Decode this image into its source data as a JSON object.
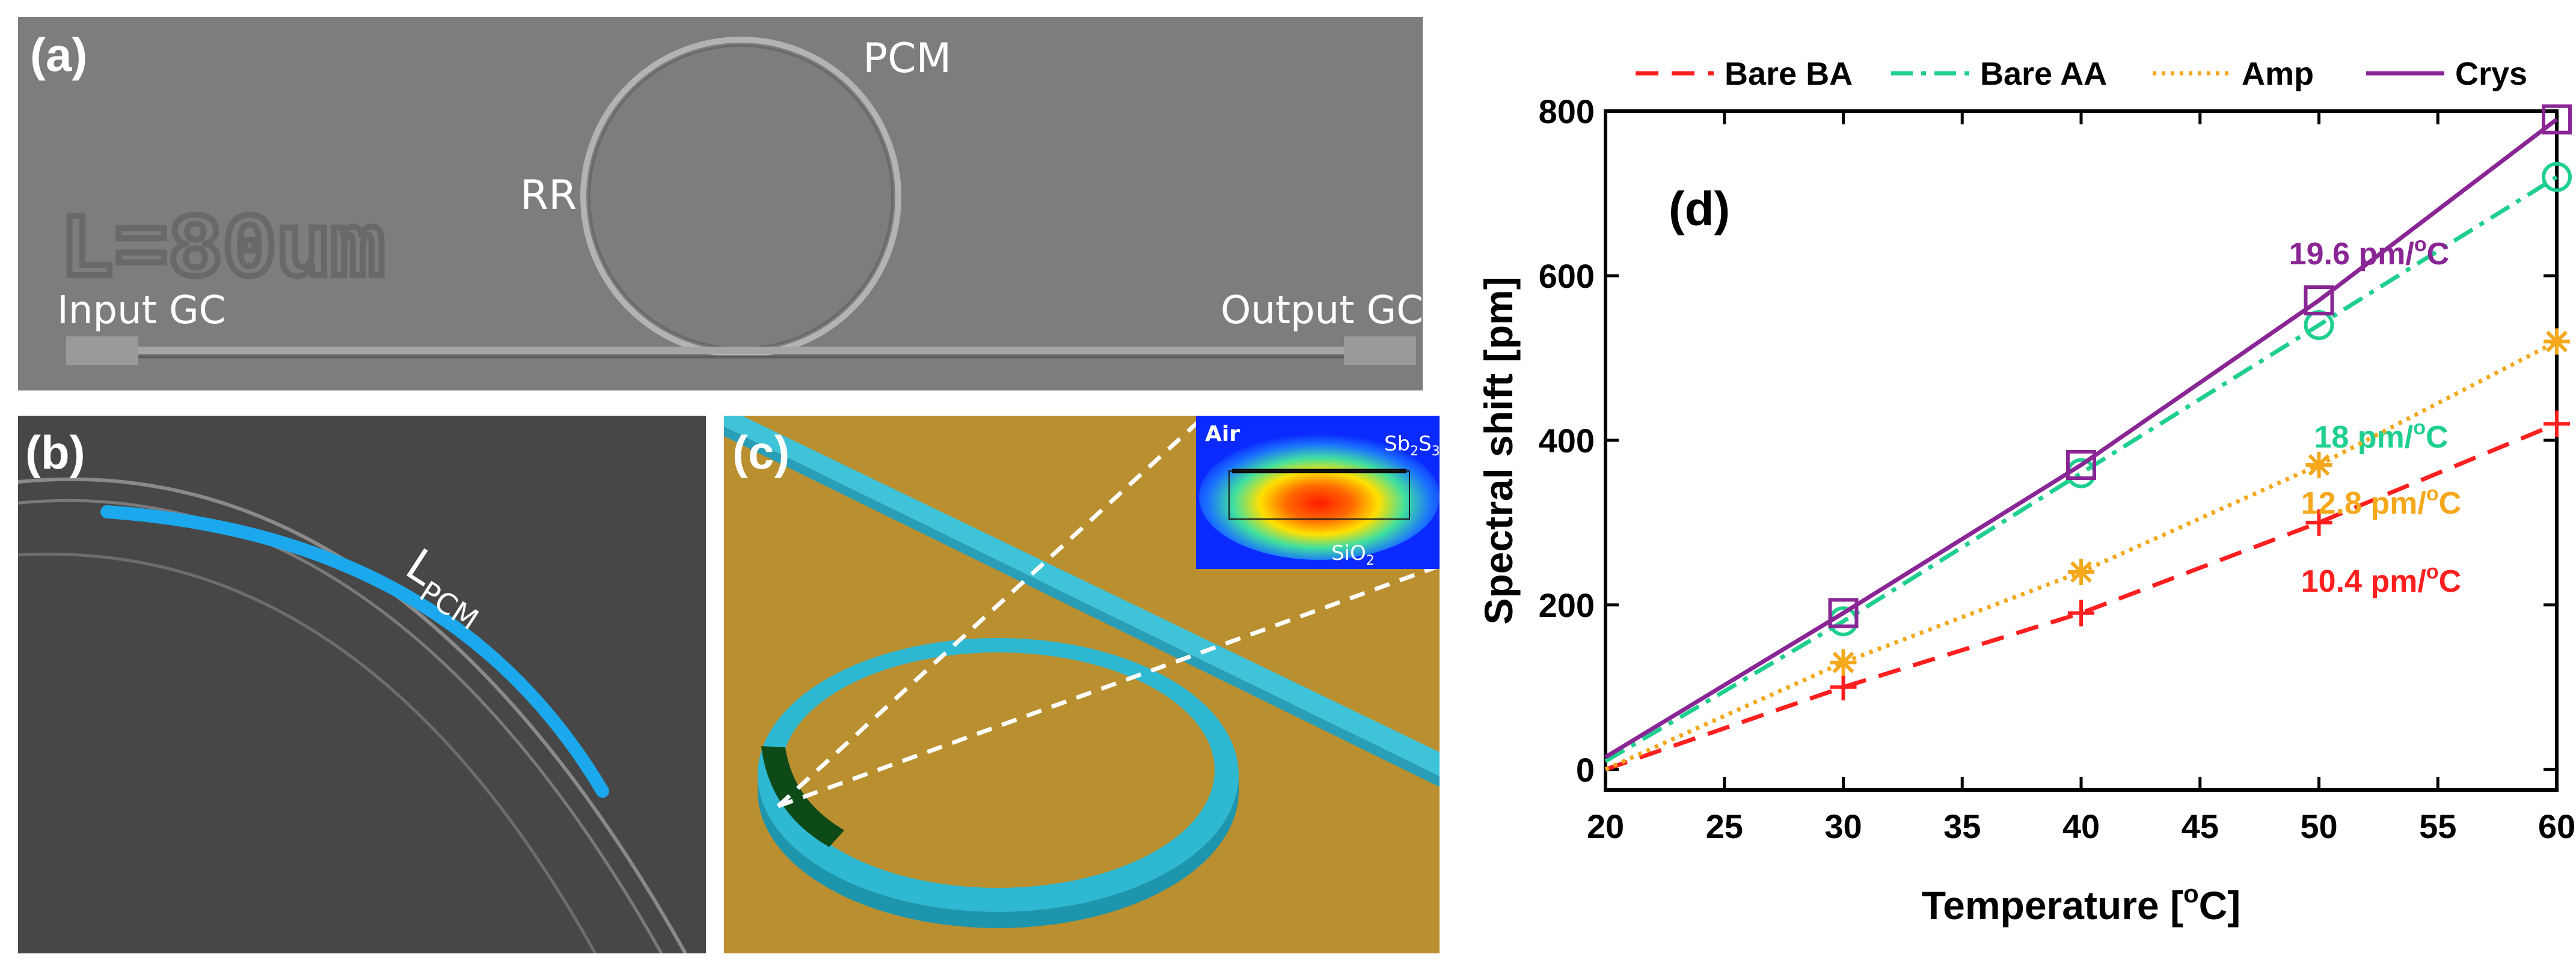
{
  "panel_a": {
    "label": "(a)",
    "pcm": "PCM",
    "rr": "RR",
    "input_gc": "Input GC",
    "output_gc": "Output GC",
    "etched": "L=80um"
  },
  "panel_b": {
    "label": "(b)",
    "lpcm_main": "L",
    "lpcm_sub": "PCM"
  },
  "panel_c": {
    "label": "(c)",
    "air": "Air",
    "sb_main": "Sb",
    "sb_sub1": "2",
    "sb_mid": "S",
    "sb_sub2": "3",
    "sio_main": "SiO",
    "sio_sub": "2"
  },
  "chart_data": {
    "type": "line",
    "panel_label": "(d)",
    "xlabel": "Temperature [°C]",
    "xlabel_main": "Temperature [",
    "xlabel_sup": "o",
    "xlabel_end": "C]",
    "ylabel": "Spectral shift [pm]",
    "xlim": [
      20,
      60
    ],
    "ylim": [
      -25,
      800
    ],
    "xticks": [
      20,
      25,
      30,
      35,
      40,
      45,
      50,
      55,
      60
    ],
    "yticks": [
      0,
      200,
      400,
      600,
      800
    ],
    "x": [
      30,
      40,
      50,
      60
    ],
    "legend_position": "top",
    "series": [
      {
        "name": "Bare BA",
        "color": "#ff1f1f",
        "marker": "plus",
        "dash": "38 22",
        "fit_start": [
          20,
          0
        ],
        "values": [
          100,
          190,
          300,
          420
        ],
        "slope_label": "10.4 pm/",
        "slope_sup": "o",
        "slope_unit": "C"
      },
      {
        "name": "Bare AA",
        "color": "#1fcf8f",
        "marker": "circle",
        "dash": "36 14 8 14",
        "fit_start": [
          20,
          10
        ],
        "values": [
          180,
          360,
          540,
          720
        ],
        "slope_label": "18 pm/",
        "slope_sup": "o",
        "slope_unit": "C"
      },
      {
        "name": "Amp",
        "color": "#f5a81c",
        "marker": "star",
        "dash": "6 9",
        "fit_start": [
          20,
          0
        ],
        "values": [
          130,
          240,
          370,
          520
        ],
        "slope_label": "12.8 pm/",
        "slope_sup": "o",
        "slope_unit": "C"
      },
      {
        "name": "Crys",
        "color": "#8a2596",
        "marker": "square",
        "dash": "",
        "fit_start": [
          20,
          15
        ],
        "values": [
          190,
          370,
          570,
          790
        ],
        "slope_label": "19.6 pm/",
        "slope_sup": "o",
        "slope_unit": "C"
      }
    ]
  }
}
